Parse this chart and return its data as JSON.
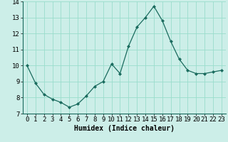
{
  "x": [
    0,
    1,
    2,
    3,
    4,
    5,
    6,
    7,
    8,
    9,
    10,
    11,
    12,
    13,
    14,
    15,
    16,
    17,
    18,
    19,
    20,
    21,
    22,
    23
  ],
  "y": [
    10.0,
    8.9,
    8.2,
    7.9,
    7.7,
    7.4,
    7.6,
    8.1,
    8.7,
    9.0,
    10.1,
    9.5,
    11.2,
    12.4,
    13.0,
    13.7,
    12.8,
    11.5,
    10.4,
    9.7,
    9.5,
    9.5,
    9.6,
    9.7
  ],
  "line_color": "#1a6b5e",
  "marker": "D",
  "marker_size": 2.0,
  "bg_color": "#cceee8",
  "grid_color": "#99ddcc",
  "xlabel": "Humidex (Indice chaleur)",
  "xlabel_fontsize": 7,
  "tick_fontsize": 6.5,
  "ylim": [
    7,
    14
  ],
  "xlim": [
    -0.5,
    23.5
  ],
  "yticks": [
    7,
    8,
    9,
    10,
    11,
    12,
    13,
    14
  ],
  "xticks": [
    0,
    1,
    2,
    3,
    4,
    5,
    6,
    7,
    8,
    9,
    10,
    11,
    12,
    13,
    14,
    15,
    16,
    17,
    18,
    19,
    20,
    21,
    22,
    23
  ]
}
